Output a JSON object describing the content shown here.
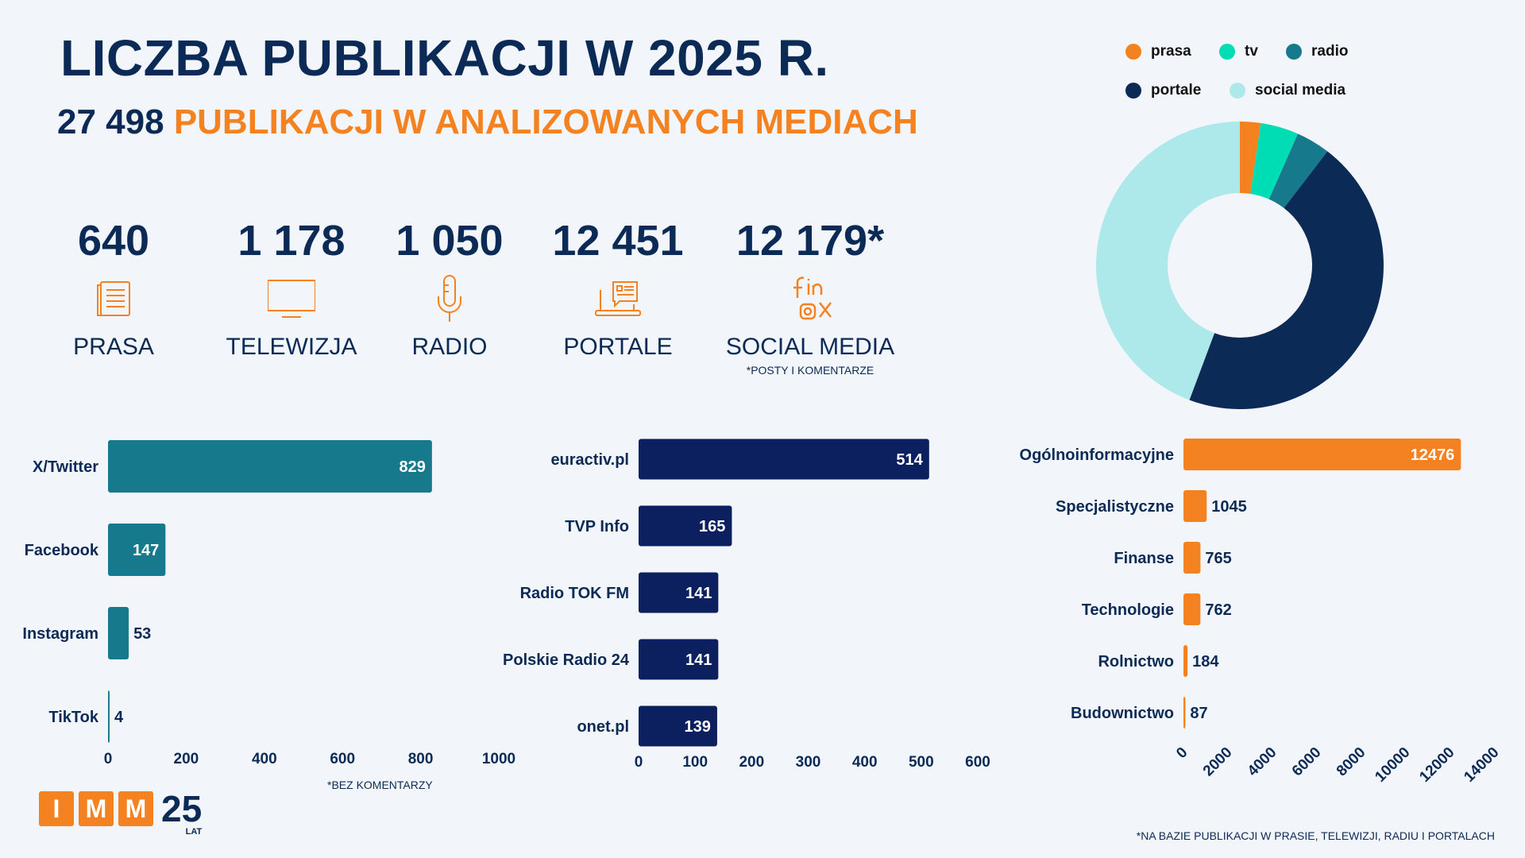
{
  "header": {
    "title": "LICZBA PUBLIKACJI W 2025 R.",
    "subtitle_number": "27 498",
    "subtitle_text": "PUBLIKACJI W ANALIZOWANYCH MEDIACH"
  },
  "stats": [
    {
      "value": "640",
      "label": "PRASA",
      "icon": "newspaper-icon"
    },
    {
      "value": "1 178",
      "label": "TELEWIZJA",
      "icon": "tv-icon"
    },
    {
      "value": "1 050",
      "label": "RADIO",
      "icon": "microphone-icon"
    },
    {
      "value": "12 451",
      "label": "PORTALE",
      "icon": "laptop-news-icon"
    },
    {
      "value": "12 179*",
      "label": "SOCIAL MEDIA",
      "note": "*POSTY I KOMENTARZE",
      "icon": "social-media-icon"
    }
  ],
  "notes": {
    "social_note": "*BEZ KOMENTARZY",
    "footnote": "*NA BAZIE PUBLIKACJI W PRASIE, TELEWIZJI, RADIU I PORTALACH"
  },
  "logo": {
    "letters": [
      "I",
      "M",
      "M"
    ],
    "years": "25",
    "suffix": "LAT"
  },
  "colors": {
    "navy": "#0b2a55",
    "orange": "#f58220",
    "teal": "#167a8c",
    "mid_navy": "#0c1f5e",
    "tv": "#00dcb4",
    "social": "#ade8ea",
    "background": "#f2f6fa"
  },
  "chart_data": [
    {
      "type": "pie",
      "donut": true,
      "legend": "top",
      "categories": [
        "prasa",
        "tv",
        "radio",
        "portale",
        "social media"
      ],
      "values": [
        640,
        1178,
        1050,
        12451,
        12179
      ],
      "colors": [
        "#f58220",
        "#00dcb4",
        "#167a8c",
        "#0b2a55",
        "#ade8ea"
      ]
    },
    {
      "type": "bar",
      "orientation": "horizontal",
      "categories": [
        "X/Twitter",
        "Facebook",
        "Instagram",
        "TikTok"
      ],
      "values": [
        829,
        147,
        53,
        4
      ],
      "xlim": [
        0,
        1000
      ],
      "ticks": [
        0,
        200,
        400,
        600,
        800,
        1000
      ],
      "color": "#167a8c"
    },
    {
      "type": "bar",
      "orientation": "horizontal",
      "categories": [
        "euractiv.pl",
        "TVP Info",
        "Radio TOK FM",
        "Polskie Radio 24",
        "onet.pl"
      ],
      "values": [
        514,
        165,
        141,
        141,
        139
      ],
      "xlim": [
        0,
        600
      ],
      "ticks": [
        0,
        100,
        200,
        300,
        400,
        500,
        600
      ],
      "color": "#0c1f5e"
    },
    {
      "type": "bar",
      "orientation": "horizontal",
      "categories": [
        "Ogólnoinformacyjne",
        "Specjalistyczne",
        "Finanse",
        "Technologie",
        "Rolnictwo",
        "Budownictwo"
      ],
      "values": [
        12476,
        1045,
        765,
        762,
        184,
        87
      ],
      "xlim": [
        0,
        14000
      ],
      "ticks": [
        0,
        2000,
        4000,
        6000,
        8000,
        10000,
        12000,
        14000
      ],
      "color": "#f58220"
    }
  ]
}
